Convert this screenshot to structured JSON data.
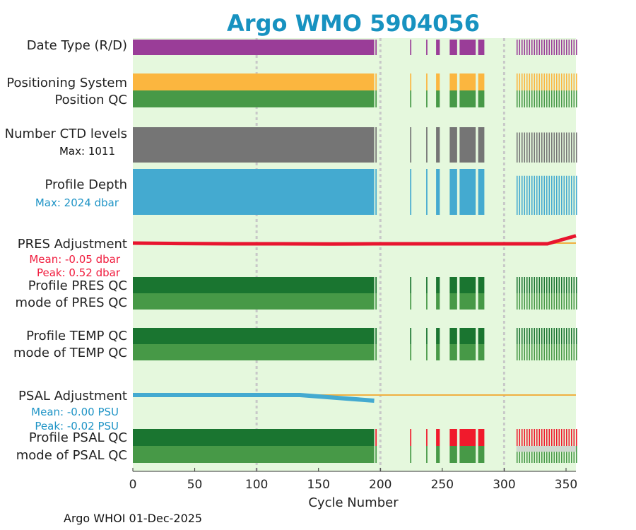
{
  "chart_data": {
    "type": "timeline",
    "title": "Argo WMO 5904056",
    "xlabel": "Cycle Number",
    "xlim": [
      0,
      358
    ],
    "xticks": [
      0,
      50,
      100,
      150,
      200,
      250,
      300,
      350
    ],
    "vertical_gridlines": [
      100,
      200,
      300
    ],
    "cycle_segments": [
      [
        0,
        195
      ],
      [
        196,
        197
      ],
      [
        224,
        225
      ],
      [
        237,
        238
      ],
      [
        245,
        248
      ],
      [
        256,
        262
      ],
      [
        264,
        277
      ],
      [
        279,
        284
      ],
      [
        310,
        358
      ]
    ],
    "rows": [
      {
        "name": "date-type",
        "label": "Date Type (R/D)",
        "color": "#9a3d98",
        "type": "bars"
      },
      {
        "name": "positioning-system",
        "label": "Positioning System",
        "color": "#fbb63f",
        "type": "bars"
      },
      {
        "name": "position-qc",
        "label": "Position QC",
        "color": "#479947",
        "type": "bars"
      },
      {
        "name": "ctd-levels",
        "label": "Number CTD levels",
        "sublabels": [
          "Max: 1011"
        ],
        "sublabel_color": "#111111",
        "color": "#757575",
        "type": "variable"
      },
      {
        "name": "profile-depth",
        "label": "Profile Depth",
        "sublabels": [
          "Max: 2024 dbar"
        ],
        "sublabel_color": "#1f94c6",
        "color": "#44aad0",
        "type": "variable"
      },
      {
        "name": "pres-adjustment",
        "label": "PRES Adjustment",
        "sublabels": [
          "Mean: -0.05 dbar",
          "Peak: 0.52 dbar"
        ],
        "sublabel_color": "#f01a3c",
        "color": "#e8152f",
        "type": "line"
      },
      {
        "name": "profile-pres-qc",
        "label": "Profile PRES QC",
        "color": "#1a7530",
        "type": "bars"
      },
      {
        "name": "mode-pres-qc",
        "label": "mode of PRES QC",
        "color": "#479947",
        "type": "bars"
      },
      {
        "name": "profile-temp-qc",
        "label": "Profile TEMP QC",
        "color": "#1a7530",
        "type": "bars"
      },
      {
        "name": "mode-temp-qc",
        "label": "mode of TEMP QC",
        "color": "#479947",
        "type": "bars"
      },
      {
        "name": "psal-adjustment",
        "label": "PSAL Adjustment",
        "sublabels": [
          "Mean: -0.00 PSU",
          "Peak: -0.02 PSU"
        ],
        "sublabel_color": "#1f94c6",
        "color": "#44aad0",
        "type": "line"
      },
      {
        "name": "profile-psal-qc",
        "label": "Profile PSAL QC",
        "color": "#1a7530",
        "type": "bars"
      },
      {
        "name": "mode-psal-qc",
        "label": "mode of PSAL QC",
        "color": "#479947",
        "type": "bars"
      }
    ],
    "psal_adjustment_series": {
      "x": [
        0,
        135,
        195
      ],
      "y": [
        0.0,
        0.0,
        -0.02
      ]
    },
    "pres_adjustment_series": {
      "x": [
        0,
        40,
        80,
        120,
        160,
        195,
        250,
        280,
        335,
        358
      ],
      "y": [
        0.0,
        -0.03,
        -0.05,
        -0.05,
        -0.06,
        -0.05,
        -0.05,
        -0.05,
        -0.05,
        0.52
      ]
    },
    "reference_line_color": "#f0b040",
    "failed_qc_color": "#f01a2c",
    "background_color": "#e5f8dd",
    "gridline_color": "#c8c8c8"
  },
  "footer": "Argo WHOI 01-Dec-2025"
}
